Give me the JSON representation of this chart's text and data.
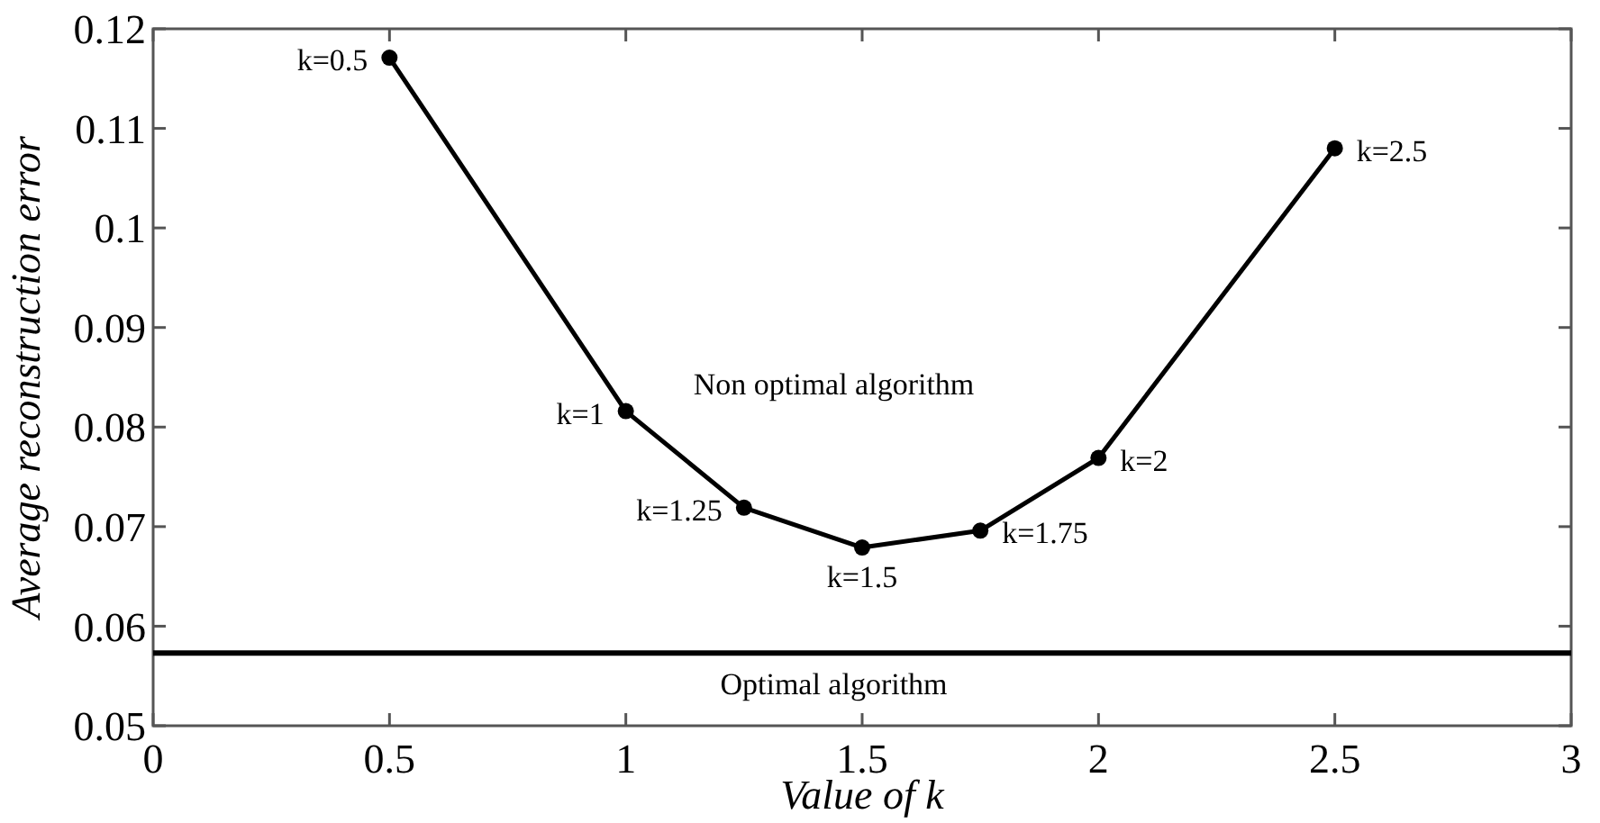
{
  "chart_data": {
    "type": "line",
    "xlabel": "Value of k",
    "ylabel": "Average reconstruction error",
    "x": [
      0.5,
      1,
      1.25,
      1.5,
      1.75,
      2,
      2.5
    ],
    "series": [
      {
        "color": "#000000",
        "values": [
          0.1171,
          0.0816,
          0.0719,
          0.0679,
          0.0696,
          0.0769,
          0.108
        ]
      }
    ],
    "xlim": [
      0,
      3
    ],
    "xticks": [
      0,
      0.5,
      1,
      1.5,
      2,
      2.5,
      3
    ],
    "ylim": [
      0.05,
      0.12
    ],
    "yticks": [
      0.05,
      0.06,
      0.07,
      0.08,
      0.09,
      0.1,
      0.11,
      0.12
    ],
    "ref_lines": [
      {
        "axis": "y",
        "value": 0.0573,
        "label": "Optimal algorithm",
        "color": "#000000"
      }
    ],
    "annotations": [
      "Non optimal algorithm",
      {
        "text": "k=0.5",
        "x": 0.5,
        "y": 0.1171
      },
      {
        "text": "k=1",
        "x": 1,
        "y": 0.0816
      },
      {
        "text": "k=1.25",
        "x": 1.25,
        "y": 0.0719
      },
      {
        "text": "k=1.5",
        "x": 1.5,
        "y": 0.0679
      },
      {
        "text": "k=1.75",
        "x": 1.75,
        "y": 0.0696
      },
      {
        "text": "k=2",
        "x": 2,
        "y": 0.0769
      },
      {
        "text": "k=2.5",
        "x": 2.5,
        "y": 0.108
      }
    ],
    "marker": "circle",
    "line_style": "solid",
    "grid": false
  }
}
